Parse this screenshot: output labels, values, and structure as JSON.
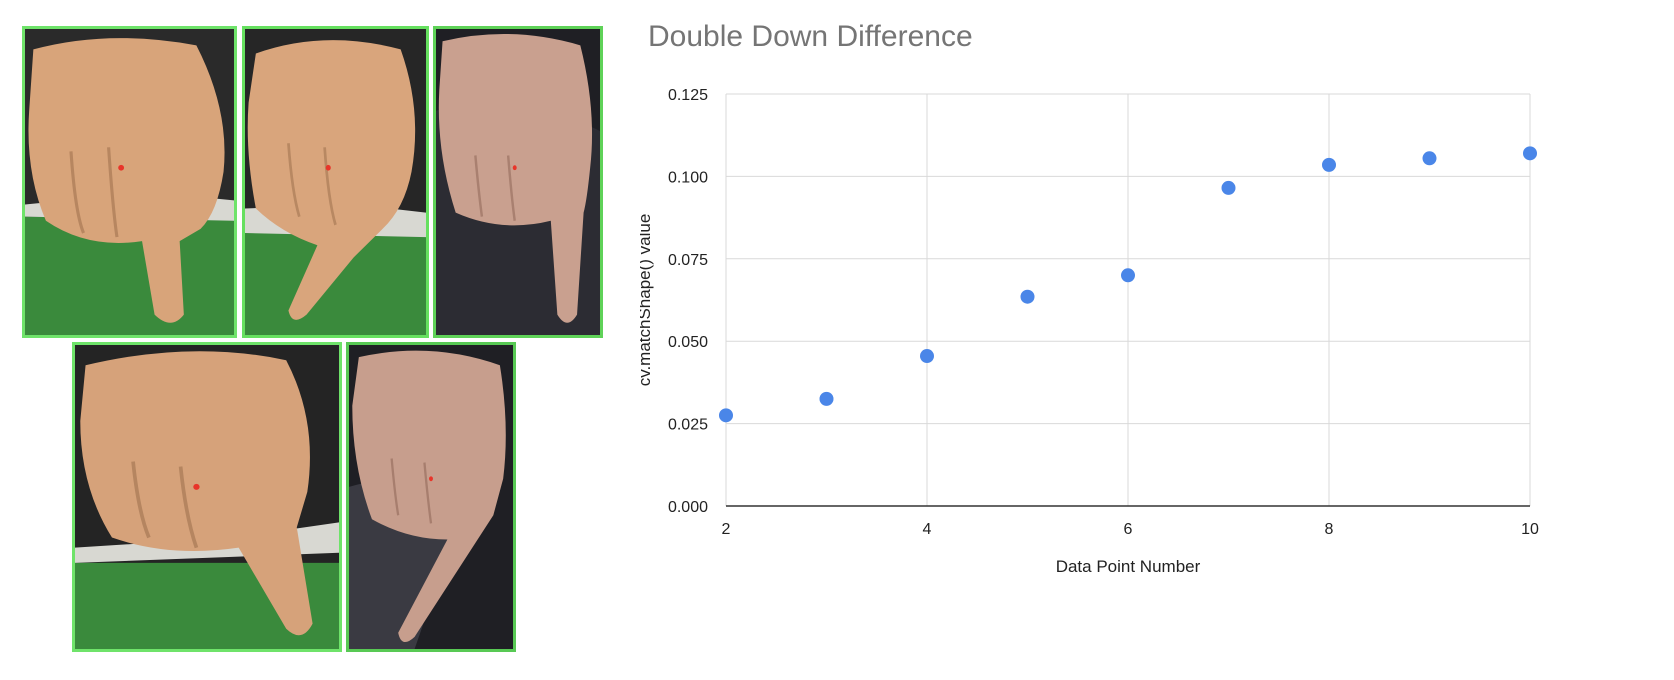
{
  "colors": {
    "photo_border": "#6fe36a",
    "point": "#4a86e8",
    "grid": "#d9d9d9",
    "axis": "#333333",
    "title": "#757575",
    "red_marker": "#e8352a"
  },
  "photos": [
    {
      "name": "hand-photo-1",
      "icon": "hand-pointing-down-icon"
    },
    {
      "name": "hand-photo-2",
      "icon": "hand-pointing-down-icon"
    },
    {
      "name": "hand-photo-3",
      "icon": "hand-pointing-down-icon"
    },
    {
      "name": "hand-photo-4",
      "icon": "hand-pointing-down-icon"
    },
    {
      "name": "hand-photo-5",
      "icon": "hand-pointing-down-icon"
    }
  ],
  "chart_data": {
    "type": "scatter",
    "title": "Double Down Difference",
    "xlabel": "Data Point Number",
    "ylabel": "cv.matchShape() value",
    "xlim": [
      2,
      10
    ],
    "ylim": [
      0,
      0.125
    ],
    "xticks": [
      "2",
      "4",
      "6",
      "8",
      "10"
    ],
    "yticks": [
      "0.000",
      "0.025",
      "0.050",
      "0.075",
      "0.100",
      "0.125"
    ],
    "grid": true,
    "x": [
      2,
      3,
      4,
      5,
      6,
      7,
      8,
      9,
      10
    ],
    "y": [
      0.0275,
      0.0325,
      0.0455,
      0.0635,
      0.07,
      0.0965,
      0.1035,
      0.1055,
      0.107
    ]
  }
}
